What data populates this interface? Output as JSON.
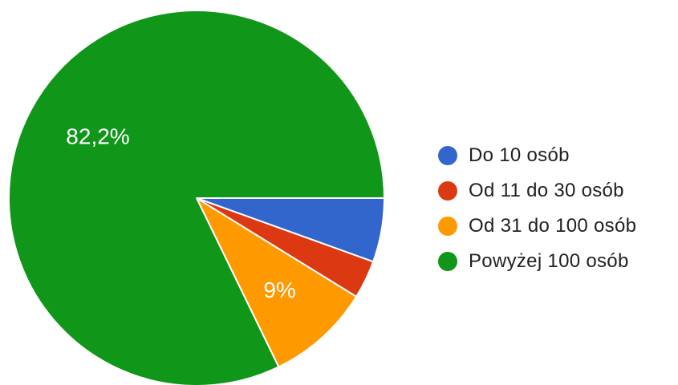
{
  "chart_data": {
    "type": "pie",
    "title": "",
    "slices": [
      {
        "label": "Do 10 osób",
        "value": 5.5,
        "color": "#3366cc",
        "data_label": ""
      },
      {
        "label": "Od 11 do 30 osób",
        "value": 3.3,
        "color": "#dc3912",
        "data_label": ""
      },
      {
        "label": "Od 31 do 100 osób",
        "value": 9.0,
        "color": "#ff9900",
        "data_label": "9%"
      },
      {
        "label": "Powyżej 100 osób",
        "value": 82.2,
        "color": "#109618",
        "data_label": "82,2%"
      }
    ],
    "legend_position": "right"
  }
}
